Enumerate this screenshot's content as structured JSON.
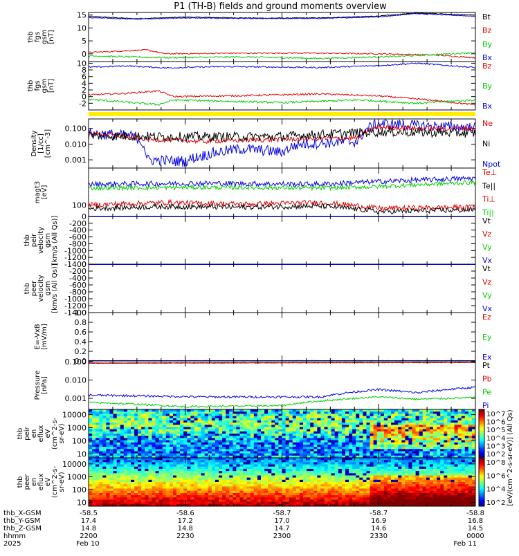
{
  "title": "P1 (TH-B) fields and ground moments overview",
  "colors": {
    "black": "#000000",
    "red": "#e00000",
    "green": "#00cc00",
    "blue": "#0000e0",
    "yellow": "#ffee00"
  },
  "panels": [
    {
      "id": "fgs-bt",
      "ylabel": [
        "thb",
        "fgs",
        "gsm",
        "[nT]"
      ],
      "ticks": [
        "15",
        "10",
        "5",
        "0"
      ],
      "tickVals": [
        15,
        10,
        5,
        0
      ],
      "ylim": [
        -3,
        16
      ],
      "legend": [
        {
          "label": "Bt",
          "color": "black"
        },
        {
          "label": "Bz",
          "color": "red"
        },
        {
          "label": "By",
          "color": "green"
        },
        {
          "label": "Bx",
          "color": "blue"
        }
      ]
    },
    {
      "id": "fgs",
      "ylabel": [
        "thb",
        "fgs",
        "gsm",
        "[nT]"
      ],
      "ticks": [
        "10",
        "8",
        "6",
        "4",
        "2",
        "0",
        "-2"
      ],
      "tickVals": [
        10,
        8,
        6,
        4,
        2,
        0,
        -2
      ],
      "ylim": [
        -4,
        10.5
      ],
      "legend": [
        {
          "label": "Bz",
          "color": "red"
        },
        {
          "label": "By",
          "color": "green"
        },
        {
          "label": "Bx",
          "color": "blue"
        }
      ]
    },
    {
      "id": "density",
      "ylabel": [
        "Density",
        "[1/cc]",
        "[cm^-3]"
      ],
      "ticks": [
        "0.100",
        "0.010",
        "0.001"
      ],
      "tickVals": [
        0.1,
        0.01,
        0.001
      ],
      "log": true,
      "ylim": [
        0.0003,
        0.4
      ],
      "legend": [
        {
          "label": "Ne",
          "color": "red"
        },
        {
          "label": "Ni",
          "color": "black"
        },
        {
          "label": "Npot",
          "color": "blue"
        }
      ]
    },
    {
      "id": "temp",
      "ylabel": [
        "magt3",
        "[eV]"
      ],
      "ticks": [
        "100"
      ],
      "tickVals": [
        100
      ],
      "log": true,
      "ylim": [
        30,
        5000
      ],
      "legend": [
        {
          "label": "Te⊥",
          "color": "red"
        },
        {
          "label": "Te||",
          "color": "black"
        },
        {
          "label": "Ti⊥",
          "color": "red"
        },
        {
          "label": "Ti||",
          "color": "green"
        }
      ]
    },
    {
      "id": "peir-vel",
      "ylabel": [
        "thb",
        "peir",
        "velocity",
        "gsm",
        "[km/s (All Qs)]"
      ],
      "ticks": [
        "0",
        "-200",
        "-400",
        "-600",
        "-800",
        "-1000",
        "-1200",
        "-1400"
      ],
      "tickVals": [
        0,
        -200,
        -400,
        -600,
        -800,
        -1000,
        -1200,
        -1400
      ],
      "ylim": [
        -1400,
        0
      ],
      "legend": [
        {
          "label": "Vt",
          "color": "black"
        },
        {
          "label": "Vz",
          "color": "red"
        },
        {
          "label": "Vy",
          "color": "green"
        },
        {
          "label": "Vx",
          "color": "blue"
        }
      ]
    },
    {
      "id": "peer-vel",
      "ylabel": [
        "thb",
        "peer",
        "velocity",
        "gsm",
        "[km/s (All Qs)]"
      ],
      "ticks": [
        "0",
        "-200",
        "-400",
        "-600",
        "-800",
        "-1000",
        "-1200",
        "-1400"
      ],
      "tickVals": [
        0,
        -200,
        -400,
        -600,
        -800,
        -1000,
        -1200,
        -1400
      ],
      "ylim": [
        -1400,
        0
      ],
      "legend": [
        {
          "label": "Vt",
          "color": "black"
        },
        {
          "label": "Vz",
          "color": "red"
        },
        {
          "label": "Vy",
          "color": "green"
        },
        {
          "label": "Vx",
          "color": "blue"
        }
      ]
    },
    {
      "id": "efield",
      "ylabel": [
        "E=-VxB",
        "[mV/m]"
      ],
      "ticks": [
        "1.0",
        "0.8",
        "0.6",
        "0.4",
        "0.2",
        "0.0"
      ],
      "tickVals": [
        1,
        0.8,
        0.6,
        0.4,
        0.2,
        0
      ],
      "ylim": [
        0,
        1
      ],
      "legend": [
        {
          "label": "Ez",
          "color": "red"
        },
        {
          "label": "Ey",
          "color": "green"
        },
        {
          "label": "Ex",
          "color": "blue"
        }
      ]
    },
    {
      "id": "pressure",
      "ylabel": [
        "Pressure",
        "[nPa]"
      ],
      "ticks": [
        "0.100",
        "0.010",
        "0.001"
      ],
      "tickVals": [
        0.1,
        0.01,
        0.001
      ],
      "log": true,
      "ylim": [
        0.00025,
        0.11
      ],
      "legend": [
        {
          "label": "Pt",
          "color": "black"
        },
        {
          "label": "Pb",
          "color": "red"
        },
        {
          "label": "Pe",
          "color": "green"
        },
        {
          "label": "Pi",
          "color": "blue"
        }
      ]
    },
    {
      "id": "peir-eflux",
      "ylabel": [
        "thb",
        "peir",
        "en",
        "eflux",
        "eV",
        "(cm^2-s-",
        "sr-eV)"
      ],
      "ticks": [
        "10000",
        "1000",
        "100",
        "10"
      ],
      "tickVals": [
        10000,
        1000,
        100,
        10
      ],
      "log": true,
      "ylim": [
        5,
        25000
      ]
    },
    {
      "id": "peer-eflux",
      "ylabel": [
        "thb",
        "peer",
        "en",
        "eflux",
        "eV",
        "(cm^2-s-",
        "sr-eV)"
      ],
      "ticks": [
        "10000",
        "1000",
        "100",
        "10"
      ],
      "tickVals": [
        10000,
        1000,
        100,
        10
      ],
      "log": true,
      "ylim": [
        5,
        30000
      ]
    }
  ],
  "colorbar": {
    "ion_ticks": [
      "10^7",
      "10^6",
      "10^5",
      "10^4",
      "10^3",
      "10^2"
    ],
    "ele_ticks": [
      "10^8",
      "10^6",
      "10^4",
      "10^2"
    ],
    "label": "[eV/(cm^2-s-sr-eV)] (All Qs)"
  },
  "xaxis": {
    "rows": [
      {
        "label": "thb_X-GSM",
        "values": [
          "-58.5",
          "-58.6",
          "-58.7",
          "-58.7",
          "-58.8"
        ]
      },
      {
        "label": "thb_Y-GSM",
        "values": [
          "17.4",
          "17.2",
          "17.0",
          "16.9",
          "16.8"
        ]
      },
      {
        "label": "thb_Z-GSM",
        "values": [
          "14.8",
          "14.8",
          "14.7",
          "14.6",
          "14.5"
        ]
      },
      {
        "label": "hhmm",
        "values": [
          "2200",
          "2230",
          "2300",
          "2330",
          "0000"
        ]
      },
      {
        "label": "2025",
        "values": [
          "Feb 10",
          "",
          "",
          "",
          "Feb 11"
        ]
      }
    ]
  },
  "chart_data": {
    "type": "line",
    "title": "P1 (TH-B) fields and ground moments overview",
    "x": [
      "2200",
      "2230",
      "2300",
      "2330",
      "0000"
    ],
    "series": [
      {
        "name": "Bt",
        "panel": "fgs-bt",
        "values": [
          14.5,
          14.0,
          13.8,
          14.4,
          15.0
        ]
      },
      {
        "name": "Bz",
        "panel": "fgs-bt",
        "values": [
          1.2,
          -0.5,
          0.3,
          -0.5,
          -1.0
        ]
      },
      {
        "name": "By",
        "panel": "fgs-bt",
        "values": [
          -1.2,
          -1.0,
          -1.5,
          -1.2,
          -0.5
        ]
      },
      {
        "name": "Bx",
        "panel": "fgs-bt",
        "values": [
          14.0,
          13.5,
          13.5,
          14.2,
          14.5
        ]
      },
      {
        "name": "Bz",
        "panel": "fgs",
        "values": [
          1.0,
          0.0,
          0.5,
          0.0,
          -2.0
        ]
      },
      {
        "name": "By",
        "panel": "fgs",
        "values": [
          -1.5,
          -2.0,
          -2.0,
          -1.5,
          -1.0
        ]
      },
      {
        "name": "Bx",
        "panel": "fgs",
        "values": [
          9.0,
          9.2,
          9.0,
          9.5,
          9.0
        ]
      },
      {
        "name": "Ne",
        "panel": "density",
        "values": [
          0.04,
          0.015,
          0.02,
          0.15,
          0.1
        ]
      },
      {
        "name": "Ni",
        "panel": "density",
        "values": [
          0.03,
          0.03,
          0.03,
          0.07,
          0.05
        ]
      },
      {
        "name": "Npot",
        "panel": "density",
        "values": [
          0.03,
          0.001,
          0.005,
          0.2,
          0.12
        ]
      },
      {
        "name": "Pi",
        "panel": "pressure",
        "values": [
          0.0015,
          0.0012,
          0.0012,
          0.003,
          0.003
        ]
      },
      {
        "name": "Pe",
        "panel": "pressure",
        "values": [
          0.0006,
          0.0004,
          0.0004,
          0.0011,
          0.0011
        ]
      }
    ]
  }
}
